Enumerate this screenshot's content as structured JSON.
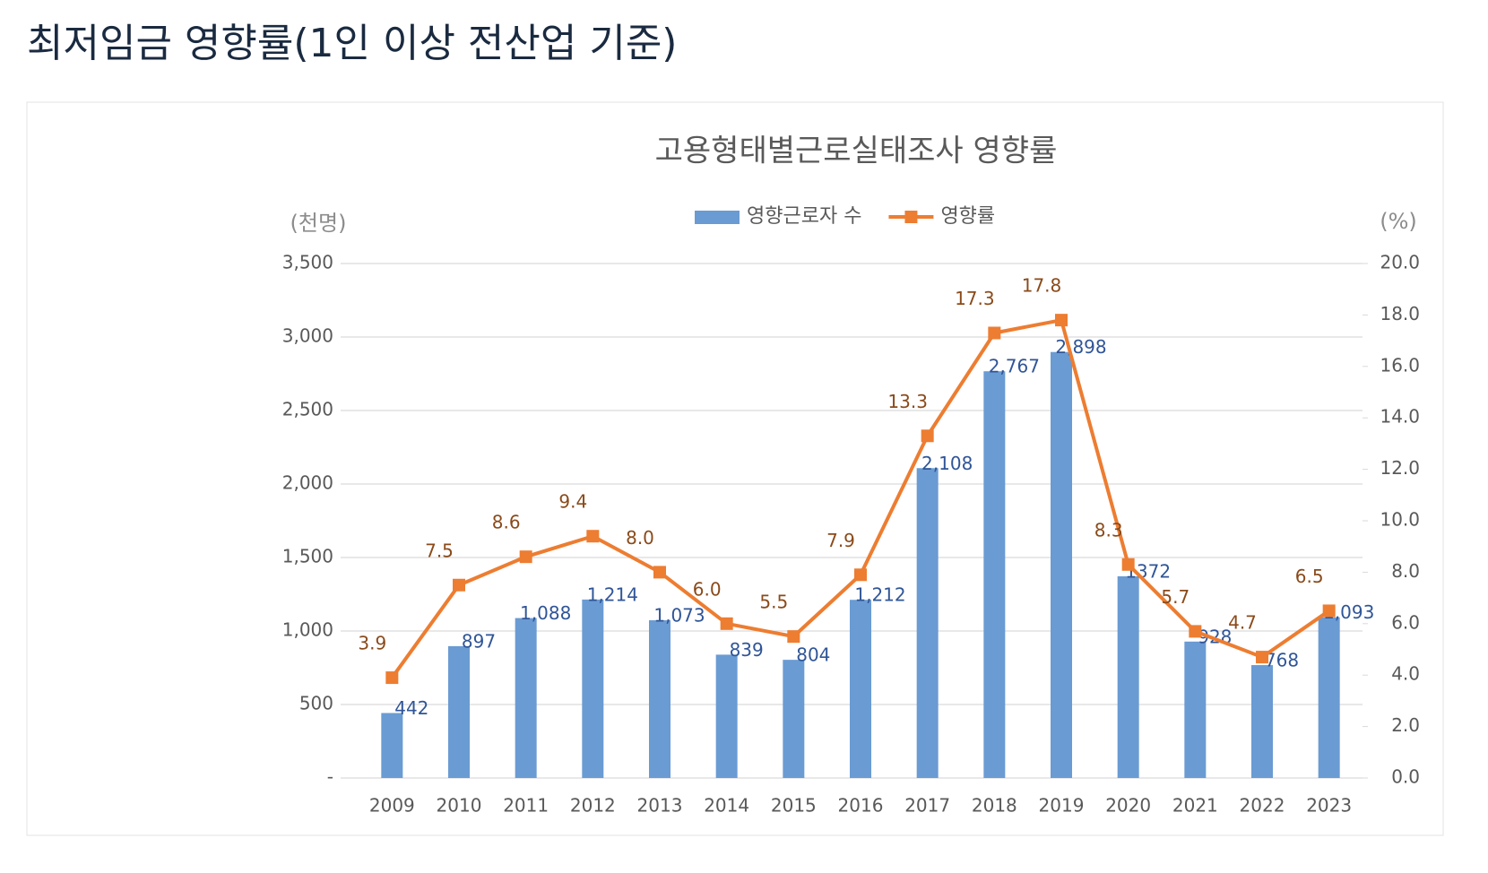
{
  "page_title": "최저임금 영향률(1인 이상 전산업 기준)",
  "chart_data": {
    "type": "bar",
    "title": "고용형태별근로실태조사  영향률",
    "y_label": "(천명)",
    "y2_label": "(%)",
    "categories": [
      "2009",
      "2010",
      "2011",
      "2012",
      "2013",
      "2014",
      "2015",
      "2016",
      "2017",
      "2018",
      "2019",
      "2020",
      "2021",
      "2022",
      "2023"
    ],
    "series": [
      {
        "name": "영향근로자 수",
        "type": "bar",
        "color": "#6a9bd3",
        "values": [
          442,
          897,
          1088,
          1214,
          1073,
          839,
          804,
          1212,
          2108,
          2767,
          2898,
          1372,
          928,
          768,
          1093
        ],
        "value_labels": [
          "442",
          "897",
          "1,088",
          "1,214",
          "1,073",
          "839",
          "804",
          "1,212",
          "2,108",
          "2,767",
          "2,898",
          "1372",
          "928",
          "768",
          "1,093"
        ]
      },
      {
        "name": "영향률",
        "type": "line",
        "axis": "y2",
        "color": "#ed7d31",
        "values": [
          3.9,
          7.5,
          8.6,
          9.4,
          8.0,
          6.0,
          5.5,
          7.9,
          13.3,
          17.3,
          17.8,
          8.3,
          5.7,
          4.7,
          6.5
        ],
        "value_labels": [
          "3.9",
          "7.5",
          "8.6",
          "9.4",
          "8.0",
          "6.0",
          "5.5",
          "7.9",
          "13.3",
          "17.3",
          "17.8",
          "8.3",
          "5.7",
          "4.7",
          "6.5"
        ]
      }
    ],
    "ylim": [
      0,
      3500
    ],
    "yticks": [
      {
        "value": 0,
        "label": "-"
      },
      500,
      {
        "value": 1000,
        "label": "1,000"
      },
      {
        "value": 1500,
        "label": "1,500"
      },
      {
        "value": 2000,
        "label": "2,000"
      },
      {
        "value": 2500,
        "label": "2,500"
      },
      {
        "value": 3000,
        "label": "3,000"
      },
      {
        "value": 3500,
        "label": "3,500"
      }
    ],
    "y2lim": [
      0,
      20
    ],
    "y2ticks": [
      {
        "value": 0,
        "label": "0.0"
      },
      {
        "value": 2,
        "label": "2.0"
      },
      {
        "value": 4,
        "label": "4.0"
      },
      {
        "value": 6,
        "label": "6.0"
      },
      {
        "value": 8,
        "label": "8.0"
      },
      {
        "value": 10,
        "label": "10.0"
      },
      {
        "value": 12,
        "label": "12.0"
      },
      {
        "value": 14,
        "label": "14.0"
      },
      {
        "value": 16,
        "label": "16.0"
      },
      {
        "value": 18,
        "label": "18.0"
      },
      {
        "value": 20,
        "label": "20.0"
      }
    ],
    "grid": true,
    "legend": "top"
  }
}
